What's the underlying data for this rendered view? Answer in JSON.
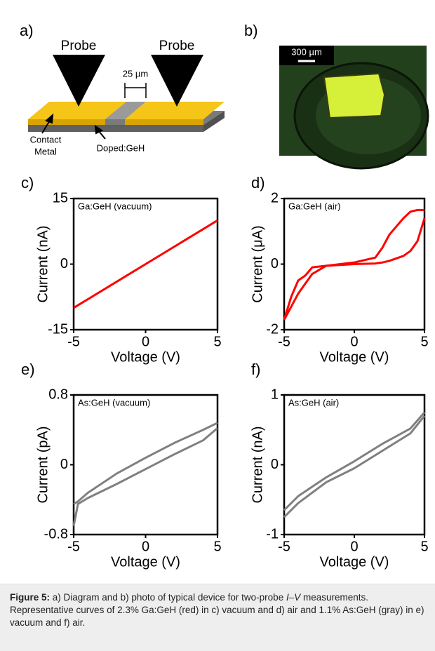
{
  "panels": {
    "a": "a)",
    "b": "b)"
  },
  "diagram": {
    "probe_left": "Probe",
    "probe_right": "Probe",
    "gap": "25 µm",
    "contact": [
      "Contact",
      "Metal"
    ],
    "channel": "Doped:GeH"
  },
  "photo": {
    "scale_bar": "300 µm"
  },
  "chart_data": [
    {
      "type": "line",
      "panel_label": "c)",
      "annotation": "Ga:GeH (vacuum)",
      "x_label": "Voltage (V)",
      "y_label": "Current (nA)",
      "x": [
        -5,
        -2.5,
        0,
        2.5,
        5
      ],
      "series": [
        {
          "color": "#ff0000",
          "values": [
            -10,
            -5,
            0,
            5,
            10
          ]
        }
      ],
      "xlim": [
        -5,
        5
      ],
      "xticks": [
        -5,
        0,
        5
      ],
      "ylim": [
        -15,
        15
      ],
      "yticks": [
        -15,
        0,
        15
      ]
    },
    {
      "type": "line",
      "panel_label": "d)",
      "annotation": "Ga:GeH (air)",
      "x_label": "Voltage (V)",
      "y_label": "Current (μA)",
      "x": [
        -5,
        -4.5,
        -4,
        -3.5,
        -3,
        -2,
        0,
        1.5,
        2,
        2.5,
        3.5,
        4,
        4.5,
        5
      ],
      "series": [
        {
          "color": "#ff0000",
          "values": [
            -1.7,
            -1.3,
            -0.9,
            -0.6,
            -0.3,
            -0.05,
            0,
            0.02,
            0.05,
            0.1,
            0.25,
            0.4,
            0.7,
            1.4
          ]
        },
        {
          "color": "#ff0000",
          "values": [
            -1.7,
            -1.0,
            -0.5,
            -0.35,
            -0.1,
            -0.05,
            0.05,
            0.2,
            0.5,
            0.9,
            1.4,
            1.6,
            1.65,
            1.65
          ]
        }
      ],
      "xlim": [
        -5,
        5
      ],
      "xticks": [
        -5,
        0,
        5
      ],
      "ylim": [
        -2,
        2
      ],
      "yticks": [
        -2,
        0,
        2
      ]
    },
    {
      "type": "line",
      "panel_label": "e)",
      "annotation": "As:GeH (vacuum)",
      "x_label": "Voltage (V)",
      "y_label": "Current (pA)",
      "x": [
        -5,
        -4.7,
        -4,
        -2,
        0,
        2,
        4,
        5
      ],
      "series": [
        {
          "color": "#808080",
          "values": [
            -0.7,
            -0.45,
            -0.38,
            -0.22,
            -0.05,
            0.12,
            0.28,
            0.42
          ]
        },
        {
          "color": "#808080",
          "values": [
            -0.45,
            -0.42,
            -0.32,
            -0.1,
            0.08,
            0.25,
            0.4,
            0.48
          ]
        }
      ],
      "xlim": [
        -5,
        5
      ],
      "xticks": [
        -5,
        0,
        5
      ],
      "ylim": [
        -0.8,
        0.8
      ],
      "yticks": [
        -0.8,
        0,
        0.8
      ]
    },
    {
      "type": "line",
      "panel_label": "f)",
      "annotation": "As:GeH (air)",
      "x_label": "Voltage (V)",
      "y_label": "Current (nA)",
      "x": [
        -5,
        -4,
        -2,
        0,
        2,
        4,
        5
      ],
      "series": [
        {
          "color": "#808080",
          "values": [
            -0.75,
            -0.55,
            -0.25,
            -0.05,
            0.2,
            0.45,
            0.7
          ]
        },
        {
          "color": "#808080",
          "values": [
            -0.65,
            -0.45,
            -0.18,
            0.05,
            0.3,
            0.52,
            0.75
          ]
        }
      ],
      "xlim": [
        -5,
        5
      ],
      "xticks": [
        -5,
        0,
        5
      ],
      "ylim": [
        -1,
        1
      ],
      "yticks": [
        -1,
        0,
        1
      ]
    }
  ],
  "caption": {
    "label": "Figure 5:",
    "text_before": "a) Diagram and b) photo of typical device for two-probe",
    "italic": "I–V",
    "text_after": "measurements. Representative curves of 2.3% Ga:GeH (red) in c) vacuum and d) air and 1.1% As:GeH (gray) in e) vacuum and f) air."
  }
}
